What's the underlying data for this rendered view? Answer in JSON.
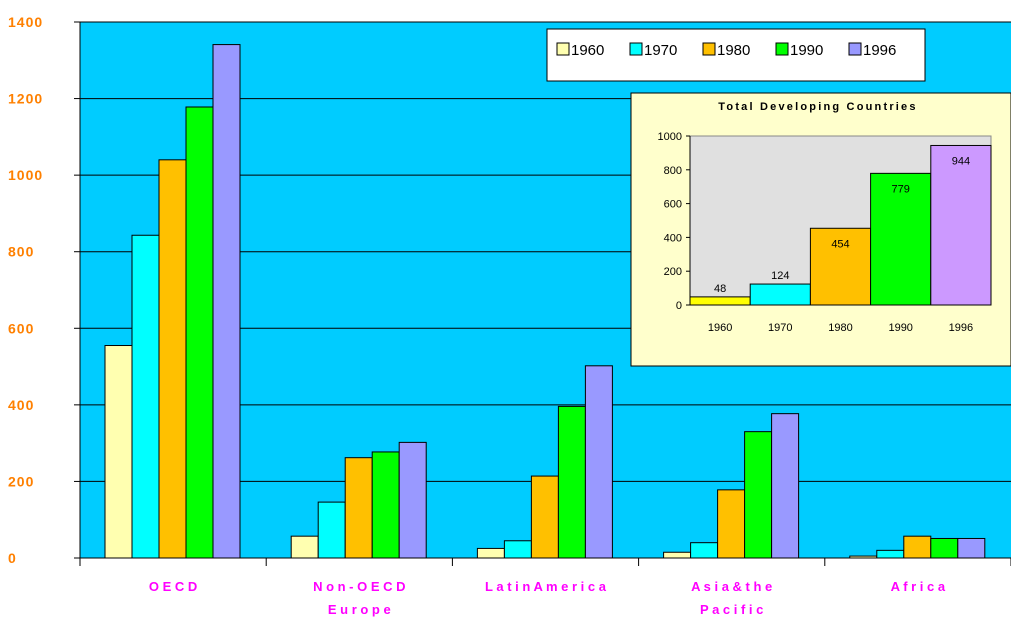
{
  "chart_data": [
    {
      "type": "bar",
      "title": "",
      "xlabel": "",
      "ylabel": "",
      "ylim": [
        0,
        1400
      ],
      "yticks": [
        "0",
        "200",
        "400",
        "600",
        "800",
        "1000",
        "1200",
        "1400"
      ],
      "categories": [
        [
          "O E C D"
        ],
        [
          "N o n - O E C D",
          "E u r o p e"
        ],
        [
          "L a t i n  A m e r i c a"
        ],
        [
          "A s i a  &  t h e",
          "P a c i f i c"
        ],
        [
          "A f r i c a"
        ]
      ],
      "series": [
        {
          "name": "1960",
          "color": "#ffffb0",
          "values": [
            555,
            57,
            25,
            15,
            5
          ]
        },
        {
          "name": "1970",
          "color": "#00ffff",
          "values": [
            843,
            146,
            45,
            40,
            20
          ]
        },
        {
          "name": "1980",
          "color": "#ffc000",
          "values": [
            1040,
            262,
            214,
            178,
            57
          ]
        },
        {
          "name": "1990",
          "color": "#00ff00",
          "values": [
            1178,
            277,
            396,
            330,
            51
          ]
        },
        {
          "name": "1996",
          "color": "#9999ff",
          "values": [
            1341,
            302,
            502,
            377,
            51
          ]
        }
      ],
      "grid": true,
      "legend": "top-right",
      "background_color": "#00ccff",
      "tick_label_color": "#ff8000",
      "category_label_color": "#ff00ff"
    },
    {
      "type": "bar",
      "title": "Total Developing Countries",
      "xlabel": "",
      "ylabel": "",
      "ylim": [
        0,
        1000
      ],
      "yticks": [
        "0",
        "200",
        "400",
        "600",
        "800",
        "1000"
      ],
      "categories": [
        "1960",
        "1970",
        "1980",
        "1990",
        "1996"
      ],
      "values": [
        48,
        124,
        454,
        779,
        944
      ],
      "data_labels": [
        "48",
        "124",
        "454",
        "779",
        "944"
      ],
      "colors": [
        "#ffff00",
        "#00ffff",
        "#ffc000",
        "#00ff00",
        "#cc99ff"
      ],
      "background_color": "#ffffcc",
      "plot_background_color": "#e0e0e0",
      "legend": "none"
    }
  ]
}
